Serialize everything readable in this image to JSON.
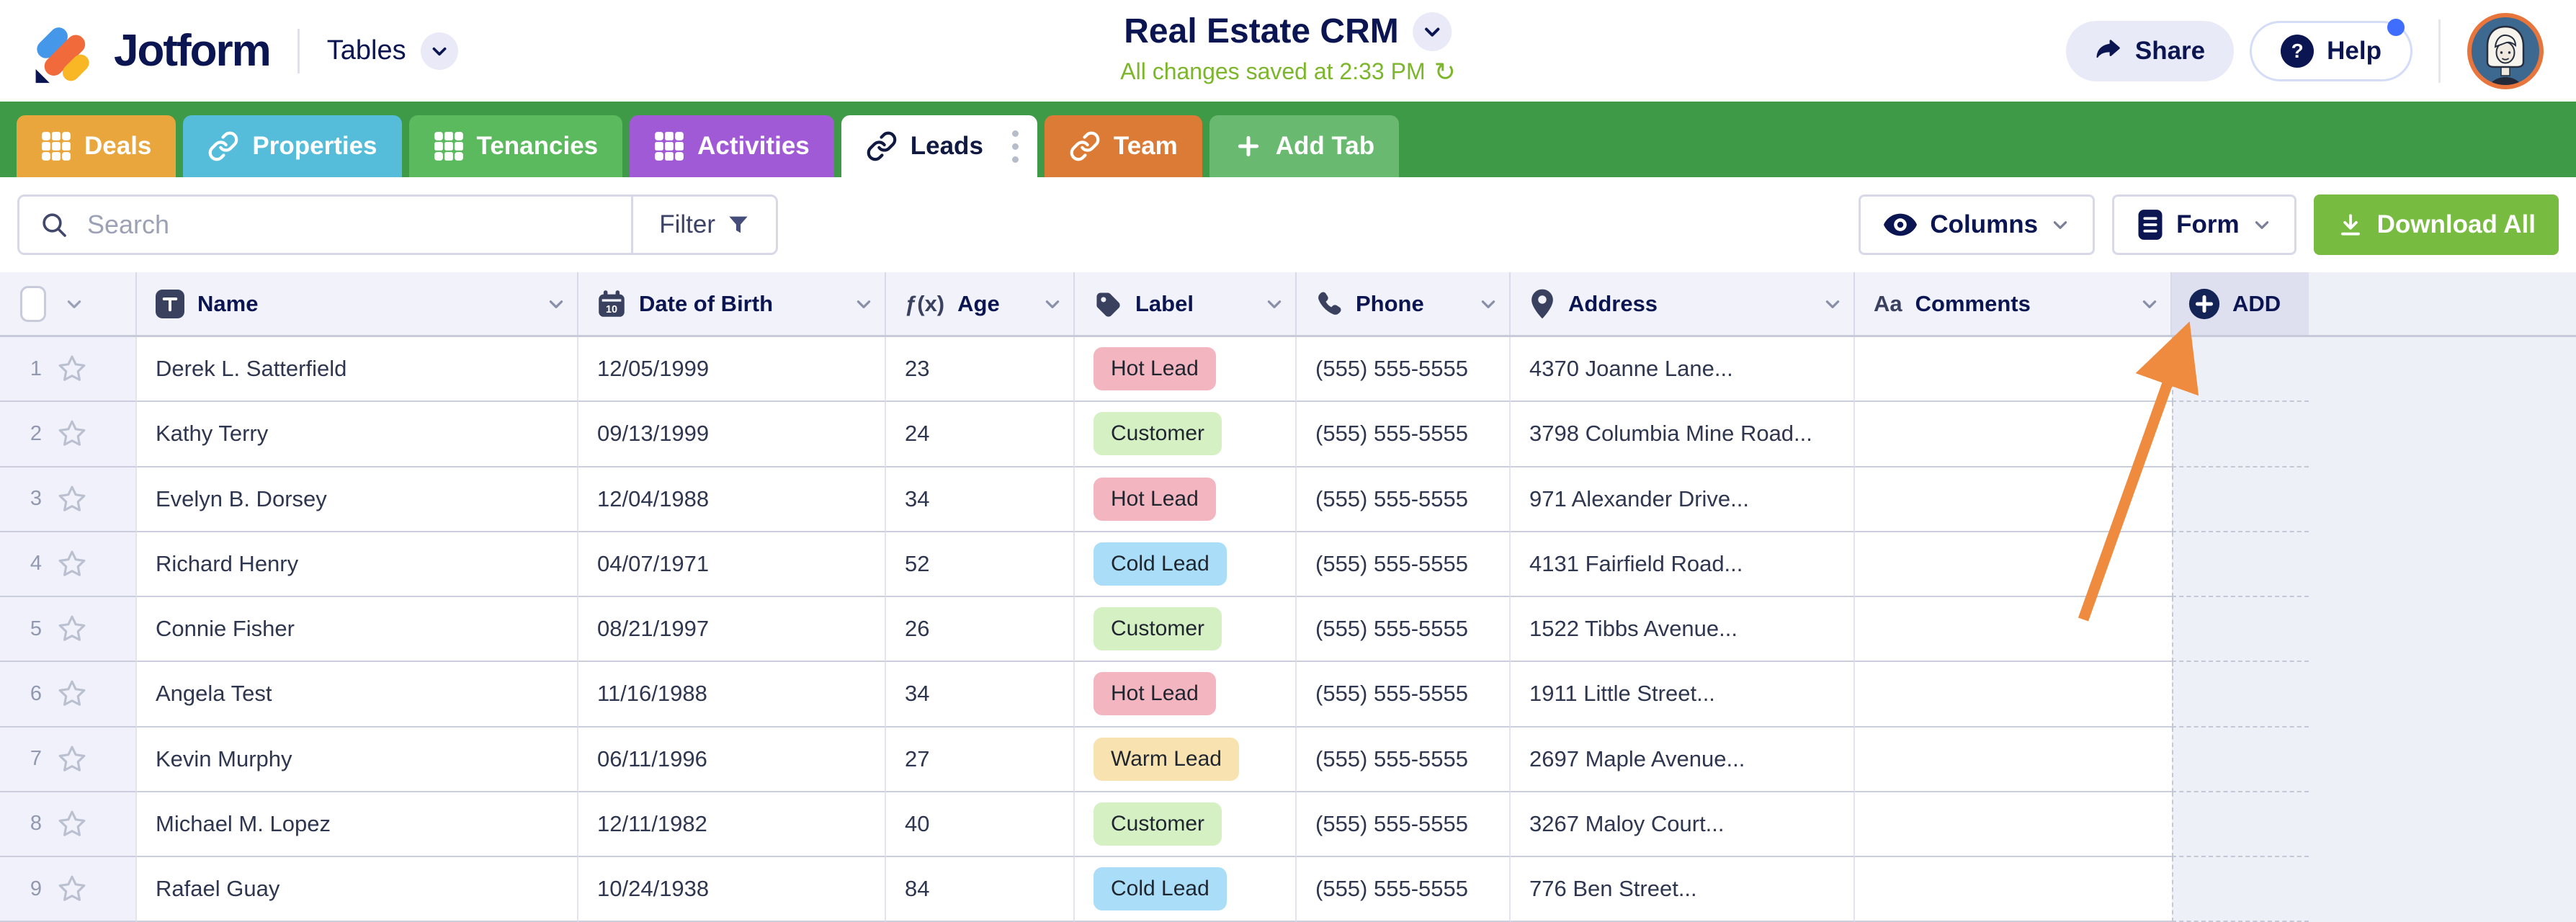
{
  "header": {
    "brand": "Jotform",
    "product": "Tables",
    "title": "Real Estate CRM",
    "saved_status": "All changes saved at 2:33 PM",
    "share_label": "Share",
    "help_label": "Help"
  },
  "tabs": [
    {
      "label": "Deals",
      "icon": "grid",
      "color": "#E9A63C"
    },
    {
      "label": "Properties",
      "icon": "link",
      "color": "#55BDD9"
    },
    {
      "label": "Tenancies",
      "icon": "grid",
      "color": "#5CBA5E"
    },
    {
      "label": "Activities",
      "icon": "grid",
      "color": "#A15AD5"
    },
    {
      "label": "Leads",
      "icon": "link",
      "color": "#FFFFFF",
      "active": true
    },
    {
      "label": "Team",
      "icon": "link",
      "color": "#DC7B36"
    },
    {
      "label": "Add Tab",
      "icon": "plus",
      "color": "#69BA70"
    }
  ],
  "toolbar": {
    "search_placeholder": "Search",
    "filter_label": "Filter",
    "columns_label": "Columns",
    "form_label": "Form",
    "download_label": "Download All"
  },
  "table": {
    "columns": [
      {
        "label": "Name",
        "icon": "text"
      },
      {
        "label": "Date of Birth",
        "icon": "calendar"
      },
      {
        "label": "Age",
        "icon": "formula"
      },
      {
        "label": "Label",
        "icon": "tag"
      },
      {
        "label": "Phone",
        "icon": "phone"
      },
      {
        "label": "Address",
        "icon": "pin"
      },
      {
        "label": "Comments",
        "icon": "aa"
      }
    ],
    "icon_glyphs": {
      "formula": "ƒ(x)",
      "aa": "Aa"
    },
    "add_column_label": "ADD",
    "label_colors": {
      "Hot Lead": "#F3B6C1",
      "Customer": "#D5F1C3",
      "Cold Lead": "#A9DDF8",
      "Warm Lead": "#F8E3B0"
    },
    "rows": [
      {
        "num": "1",
        "name": "Derek L. Satterfield",
        "dob": "12/05/1999",
        "age": "23",
        "label": "Hot Lead",
        "phone": "(555) 555-5555",
        "address": "4370 Joanne Lane...",
        "comments": ""
      },
      {
        "num": "2",
        "name": "Kathy Terry",
        "dob": "09/13/1999",
        "age": "24",
        "label": "Customer",
        "phone": "(555) 555-5555",
        "address": "3798 Columbia Mine Road...",
        "comments": ""
      },
      {
        "num": "3",
        "name": "Evelyn B. Dorsey",
        "dob": "12/04/1988",
        "age": "34",
        "label": "Hot Lead",
        "phone": "(555) 555-5555",
        "address": "971 Alexander Drive...",
        "comments": ""
      },
      {
        "num": "4",
        "name": "Richard Henry",
        "dob": "04/07/1971",
        "age": "52",
        "label": "Cold Lead",
        "phone": "(555) 555-5555",
        "address": "4131 Fairfield Road...",
        "comments": ""
      },
      {
        "num": "5",
        "name": "Connie Fisher",
        "dob": "08/21/1997",
        "age": "26",
        "label": "Customer",
        "phone": "(555) 555-5555",
        "address": "1522 Tibbs Avenue...",
        "comments": ""
      },
      {
        "num": "6",
        "name": "Angela Test",
        "dob": "11/16/1988",
        "age": "34",
        "label": "Hot Lead",
        "phone": "(555) 555-5555",
        "address": "1911 Little Street...",
        "comments": ""
      },
      {
        "num": "7",
        "name": "Kevin Murphy",
        "dob": "06/11/1996",
        "age": "27",
        "label": "Warm Lead",
        "phone": "(555) 555-5555",
        "address": "2697 Maple Avenue...",
        "comments": ""
      },
      {
        "num": "8",
        "name": "Michael M. Lopez",
        "dob": "12/11/1982",
        "age": "40",
        "label": "Customer",
        "phone": "(555) 555-5555",
        "address": "3267 Maloy Court...",
        "comments": ""
      },
      {
        "num": "9",
        "name": "Rafael Guay",
        "dob": "10/24/1938",
        "age": "84",
        "label": "Cold Lead",
        "phone": "(555) 555-5555",
        "address": "776 Ben Street...",
        "comments": ""
      }
    ]
  },
  "colors": {
    "brand_navy": "#0A1551",
    "tab_strip_green": "#3F9A48",
    "download_green": "#78BB41",
    "saved_green": "#7CB62A",
    "arrow_orange": "#EF8B3F"
  }
}
